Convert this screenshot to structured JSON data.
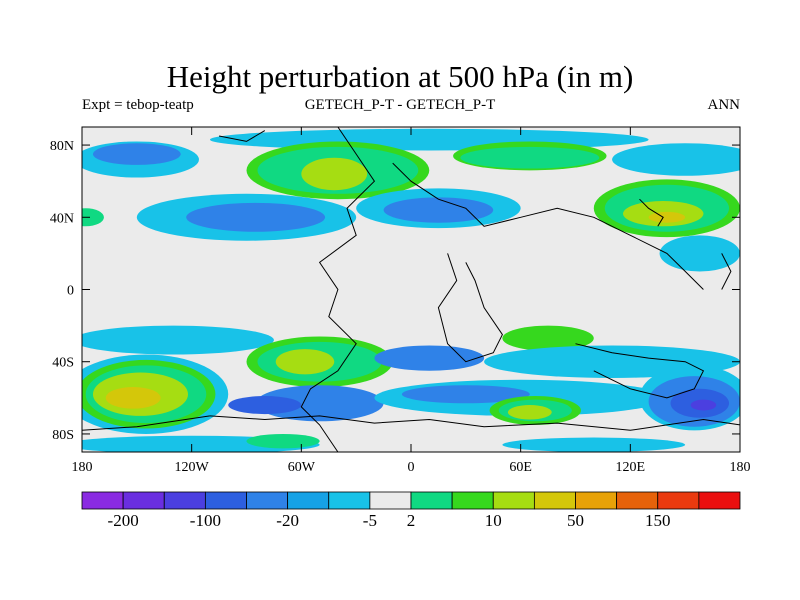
{
  "title": "Height perturbation at 500 hPa (in m)",
  "subtitle_left": "Expt = tebop-teatp",
  "subtitle_center": "GETECH_P-T - GETECH_P-T",
  "subtitle_right": "ANN",
  "x_ticks": [
    {
      "value": -180,
      "label": "180"
    },
    {
      "value": -120,
      "label": "120W"
    },
    {
      "value": -60,
      "label": "60W"
    },
    {
      "value": 0,
      "label": "0"
    },
    {
      "value": 60,
      "label": "60E"
    },
    {
      "value": 120,
      "label": "120E"
    },
    {
      "value": 180,
      "label": "180"
    }
  ],
  "y_ticks": [
    {
      "value": 80,
      "label": "80N"
    },
    {
      "value": 40,
      "label": "40N"
    },
    {
      "value": 0,
      "label": "0"
    },
    {
      "value": -40,
      "label": "40S"
    },
    {
      "value": -80,
      "label": "80S"
    }
  ],
  "colorbar": {
    "colors": [
      "#8a2be2",
      "#6a2ee0",
      "#4b3fe0",
      "#2d5fe0",
      "#2f82e8",
      "#16a2e6",
      "#18c2e8",
      "#ebebeb",
      "#10d982",
      "#36d81e",
      "#a6dd12",
      "#d4c70a",
      "#e7a208",
      "#e6620a",
      "#ea3a0f",
      "#ea0f0f"
    ],
    "labels": [
      {
        "index": 1,
        "text": "-200"
      },
      {
        "index": 3,
        "text": "-100"
      },
      {
        "index": 5,
        "text": "-20"
      },
      {
        "index": 7,
        "text": "-5"
      },
      {
        "index": 8,
        "text": "2"
      },
      {
        "index": 10,
        "text": "10"
      },
      {
        "index": 12,
        "text": "50"
      },
      {
        "index": 14,
        "text": "150"
      }
    ]
  },
  "background_color": "#ebebeb",
  "features": [
    {
      "name": "feature-north-pacific-light-blue",
      "color": "#18c2e8",
      "kind": "ellipse",
      "cx": -150,
      "cy": 72,
      "rx": 34,
      "ry": 10
    },
    {
      "name": "feature-north-pacific-blue",
      "color": "#2f82e8",
      "kind": "ellipse",
      "cx": -150,
      "cy": 75,
      "rx": 24,
      "ry": 6
    },
    {
      "name": "feature-north-polar-band-light",
      "color": "#18c2e8",
      "kind": "ellipse",
      "cx": 10,
      "cy": 83,
      "rx": 120,
      "ry": 6
    },
    {
      "name": "feature-north-atlantic-green",
      "color": "#36d81e",
      "kind": "ellipse",
      "cx": -40,
      "cy": 66,
      "rx": 50,
      "ry": 16
    },
    {
      "name": "feature-north-atlantic-teal",
      "color": "#10d982",
      "kind": "ellipse",
      "cx": -40,
      "cy": 66,
      "rx": 44,
      "ry": 13
    },
    {
      "name": "feature-north-atlantic-yellow",
      "color": "#a6dd12",
      "kind": "ellipse",
      "cx": -42,
      "cy": 64,
      "rx": 18,
      "ry": 9
    },
    {
      "name": "feature-north-eurasia-green",
      "color": "#36d81e",
      "kind": "ellipse",
      "cx": 65,
      "cy": 74,
      "rx": 42,
      "ry": 8
    },
    {
      "name": "feature-north-eurasia-teal",
      "color": "#10d982",
      "kind": "ellipse",
      "cx": 65,
      "cy": 73,
      "rx": 38,
      "ry": 6
    },
    {
      "name": "feature-north-pacific-east-light",
      "color": "#18c2e8",
      "kind": "ellipse",
      "cx": 150,
      "cy": 72,
      "rx": 40,
      "ry": 9
    },
    {
      "name": "feature-midlat-west-light",
      "color": "#18c2e8",
      "kind": "ellipse",
      "cx": -90,
      "cy": 40,
      "rx": 60,
      "ry": 13
    },
    {
      "name": "feature-midlat-west-blue",
      "color": "#2f82e8",
      "kind": "ellipse",
      "cx": -85,
      "cy": 40,
      "rx": 38,
      "ry": 8
    },
    {
      "name": "feature-midlat-far-west-green",
      "color": "#10d982",
      "kind": "ellipse",
      "cx": -178,
      "cy": 40,
      "rx": 10,
      "ry": 5
    },
    {
      "name": "feature-midlat-central-light",
      "color": "#18c2e8",
      "kind": "ellipse",
      "cx": 15,
      "cy": 45,
      "rx": 45,
      "ry": 11
    },
    {
      "name": "feature-midlat-central-blue",
      "color": "#2f82e8",
      "kind": "ellipse",
      "cx": 15,
      "cy": 44,
      "rx": 30,
      "ry": 7
    },
    {
      "name": "feature-midlat-east-green",
      "color": "#36d81e",
      "kind": "ellipse",
      "cx": 140,
      "cy": 45,
      "rx": 40,
      "ry": 16
    },
    {
      "name": "feature-midlat-east-teal",
      "color": "#10d982",
      "kind": "ellipse",
      "cx": 140,
      "cy": 45,
      "rx": 34,
      "ry": 13
    },
    {
      "name": "feature-midlat-east-yellow",
      "color": "#a6dd12",
      "kind": "ellipse",
      "cx": 138,
      "cy": 42,
      "rx": 22,
      "ry": 7
    },
    {
      "name": "feature-midlat-east-gold",
      "color": "#d4c70a",
      "kind": "ellipse",
      "cx": 140,
      "cy": 40,
      "rx": 10,
      "ry": 3
    },
    {
      "name": "feature-east-light-blue",
      "color": "#18c2e8",
      "kind": "ellipse",
      "cx": 158,
      "cy": 20,
      "rx": 22,
      "ry": 10
    },
    {
      "name": "feature-tropics-green-east",
      "color": "#36d81e",
      "kind": "ellipse",
      "cx": 75,
      "cy": -27,
      "rx": 25,
      "ry": 7
    },
    {
      "name": "feature-south-band-light-west",
      "color": "#18c2e8",
      "kind": "ellipse",
      "cx": -130,
      "cy": -28,
      "rx": 55,
      "ry": 8
    },
    {
      "name": "feature-south-band-light-east",
      "color": "#18c2e8",
      "kind": "ellipse",
      "cx": 110,
      "cy": -40,
      "rx": 70,
      "ry": 9
    },
    {
      "name": "feature-south-central-green",
      "color": "#36d81e",
      "kind": "ellipse",
      "cx": -50,
      "cy": -40,
      "rx": 40,
      "ry": 14
    },
    {
      "name": "feature-south-central-teal",
      "color": "#10d982",
      "kind": "ellipse",
      "cx": -50,
      "cy": -40,
      "rx": 34,
      "ry": 11
    },
    {
      "name": "feature-south-central-yellow",
      "color": "#a6dd12",
      "kind": "ellipse",
      "cx": -58,
      "cy": -40,
      "rx": 16,
      "ry": 7
    },
    {
      "name": "feature-south-central-blue",
      "color": "#2f82e8",
      "kind": "ellipse",
      "cx": 10,
      "cy": -38,
      "rx": 30,
      "ry": 7
    },
    {
      "name": "feature-southwest-light",
      "color": "#18c2e8",
      "kind": "ellipse",
      "cx": -145,
      "cy": -58,
      "rx": 45,
      "ry": 22
    },
    {
      "name": "feature-southwest-green",
      "color": "#36d81e",
      "kind": "ellipse",
      "cx": -145,
      "cy": -58,
      "rx": 38,
      "ry": 19
    },
    {
      "name": "feature-southwest-teal",
      "color": "#10d982",
      "kind": "ellipse",
      "cx": -145,
      "cy": -58,
      "rx": 33,
      "ry": 16
    },
    {
      "name": "feature-southwest-yellow",
      "color": "#a6dd12",
      "kind": "ellipse",
      "cx": -148,
      "cy": -58,
      "rx": 26,
      "ry": 12
    },
    {
      "name": "feature-southwest-gold",
      "color": "#d4c70a",
      "kind": "ellipse",
      "cx": -152,
      "cy": -60,
      "rx": 15,
      "ry": 6
    },
    {
      "name": "feature-south-atlantic-blue",
      "color": "#2f82e8",
      "kind": "ellipse",
      "cx": -50,
      "cy": -63,
      "rx": 35,
      "ry": 10
    },
    {
      "name": "feature-south-atlantic-darkblue",
      "color": "#2d5fe0",
      "kind": "ellipse",
      "cx": -80,
      "cy": -64,
      "rx": 20,
      "ry": 5
    },
    {
      "name": "feature-south-indian-light",
      "color": "#18c2e8",
      "kind": "ellipse",
      "cx": 60,
      "cy": -60,
      "rx": 80,
      "ry": 10
    },
    {
      "name": "feature-south-indian-blue",
      "color": "#2f82e8",
      "kind": "ellipse",
      "cx": 30,
      "cy": -58,
      "rx": 35,
      "ry": 5
    },
    {
      "name": "feature-south-indian-green",
      "color": "#36d81e",
      "kind": "ellipse",
      "cx": 68,
      "cy": -67,
      "rx": 25,
      "ry": 8
    },
    {
      "name": "feature-south-indian-teal",
      "color": "#10d982",
      "kind": "ellipse",
      "cx": 68,
      "cy": -67,
      "rx": 20,
      "ry": 6
    },
    {
      "name": "feature-south-indian-yellow",
      "color": "#a6dd12",
      "kind": "ellipse",
      "cx": 65,
      "cy": -68,
      "rx": 12,
      "ry": 4
    },
    {
      "name": "feature-southeast-light",
      "color": "#18c2e8",
      "kind": "ellipse",
      "cx": 155,
      "cy": -60,
      "rx": 30,
      "ry": 18
    },
    {
      "name": "feature-southeast-blue",
      "color": "#2f82e8",
      "kind": "ellipse",
      "cx": 155,
      "cy": -62,
      "rx": 25,
      "ry": 14
    },
    {
      "name": "feature-southeast-darkblue",
      "color": "#2d5fe0",
      "kind": "ellipse",
      "cx": 158,
      "cy": -63,
      "rx": 16,
      "ry": 8
    },
    {
      "name": "feature-southeast-indigo",
      "color": "#4b3fe0",
      "kind": "ellipse",
      "cx": 160,
      "cy": -64,
      "rx": 7,
      "ry": 3
    },
    {
      "name": "feature-far-south-light",
      "color": "#18c2e8",
      "kind": "ellipse",
      "cx": -120,
      "cy": -86,
      "rx": 70,
      "ry": 5
    },
    {
      "name": "feature-far-south-green",
      "color": "#10d982",
      "kind": "ellipse",
      "cx": -70,
      "cy": -84,
      "rx": 20,
      "ry": 4
    },
    {
      "name": "feature-far-south-east-light",
      "color": "#18c2e8",
      "kind": "ellipse",
      "cx": 100,
      "cy": -86,
      "rx": 50,
      "ry": 4
    }
  ],
  "coastlines": [
    [
      [
        -40,
        90
      ],
      [
        -30,
        75
      ],
      [
        -20,
        60
      ],
      [
        -35,
        45
      ],
      [
        -30,
        30
      ],
      [
        -50,
        15
      ],
      [
        -40,
        0
      ],
      [
        -45,
        -15
      ],
      [
        -30,
        -30
      ],
      [
        -40,
        -45
      ],
      [
        -55,
        -55
      ],
      [
        -60,
        -65
      ],
      [
        -50,
        -75
      ],
      [
        -40,
        -90
      ]
    ],
    [
      [
        -10,
        70
      ],
      [
        0,
        60
      ],
      [
        15,
        50
      ],
      [
        30,
        45
      ],
      [
        40,
        35
      ],
      [
        60,
        40
      ],
      [
        80,
        45
      ],
      [
        100,
        40
      ],
      [
        120,
        30
      ],
      [
        140,
        20
      ],
      [
        150,
        10
      ],
      [
        160,
        0
      ]
    ],
    [
      [
        20,
        20
      ],
      [
        25,
        5
      ],
      [
        15,
        -10
      ],
      [
        20,
        -30
      ],
      [
        30,
        -40
      ],
      [
        45,
        -35
      ],
      [
        50,
        -25
      ],
      [
        40,
        -10
      ],
      [
        35,
        5
      ],
      [
        30,
        15
      ]
    ],
    [
      [
        90,
        -30
      ],
      [
        110,
        -35
      ],
      [
        130,
        -38
      ],
      [
        150,
        -40
      ],
      [
        160,
        -45
      ],
      [
        155,
        -55
      ],
      [
        140,
        -60
      ],
      [
        120,
        -55
      ],
      [
        100,
        -45
      ]
    ],
    [
      [
        -110,
        -70
      ],
      [
        -80,
        -72
      ],
      [
        -50,
        -70
      ],
      [
        -20,
        -74
      ],
      [
        10,
        -72
      ],
      [
        40,
        -76
      ],
      [
        80,
        -74
      ],
      [
        120,
        -78
      ],
      [
        160,
        -72
      ],
      [
        180,
        -75
      ]
    ],
    [
      [
        -180,
        -78
      ],
      [
        -150,
        -76
      ],
      [
        -110,
        -70
      ]
    ],
    [
      [
        -105,
        85
      ],
      [
        -90,
        82
      ],
      [
        -80,
        88
      ]
    ],
    [
      [
        125,
        50
      ],
      [
        130,
        45
      ],
      [
        138,
        40
      ],
      [
        135,
        35
      ]
    ],
    [
      [
        170,
        20
      ],
      [
        175,
        10
      ],
      [
        170,
        0
      ]
    ]
  ]
}
